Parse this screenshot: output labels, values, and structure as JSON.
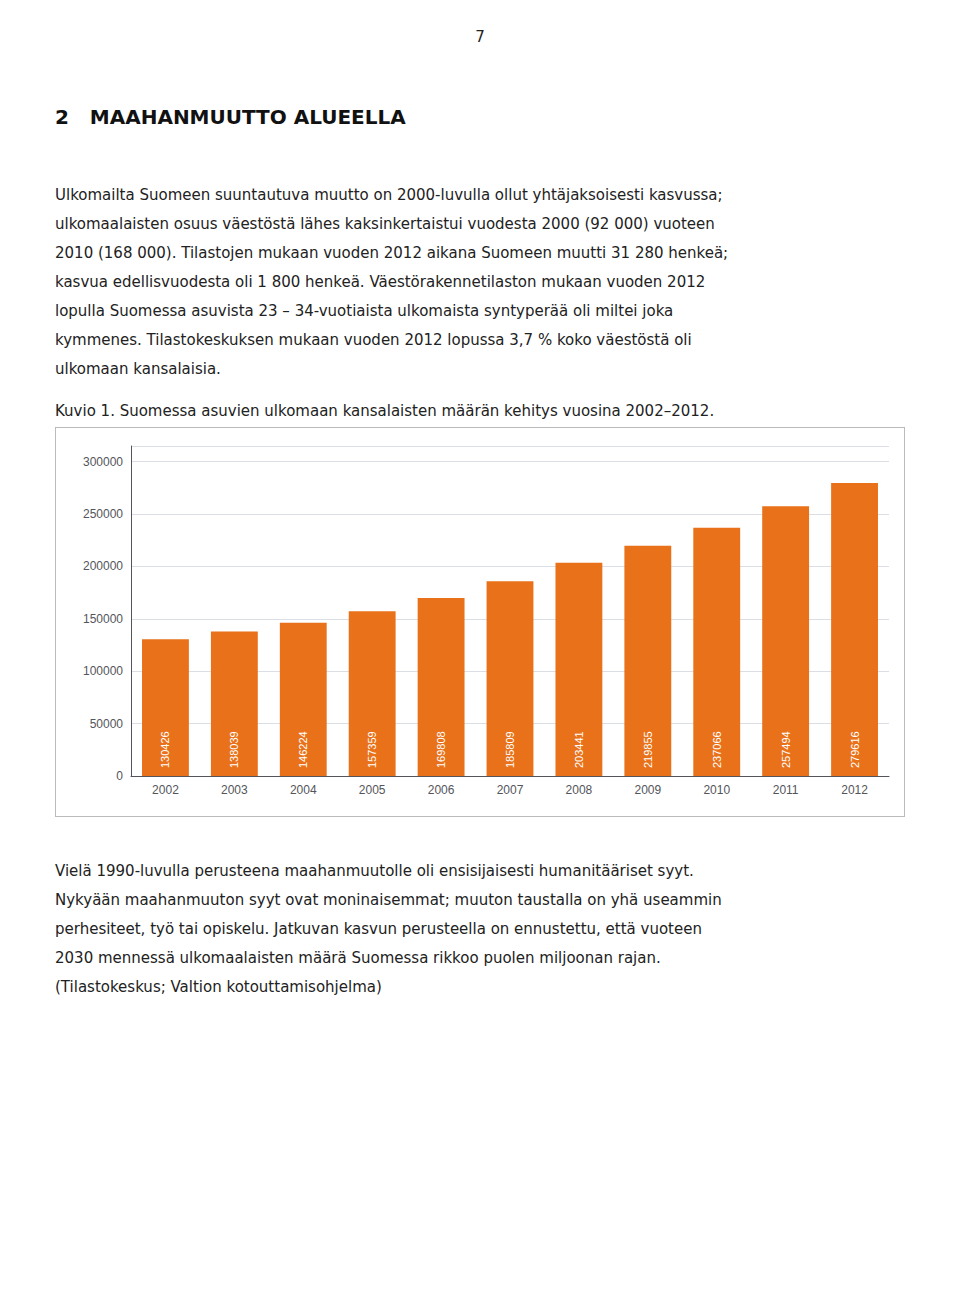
{
  "page_number": "7",
  "heading": "2   MAAHANMUUTTO ALUEELLA",
  "para1_lines": [
    "Ulkomailta Suomeen suuntautuva muutto on 2000-luvulla ollut yhtäjaksoisesti kasvussa;",
    "ulkomaalaisten osuus väestöstä lähes kaksinkertaistui vuodesta 2000 (92 000) vuoteen",
    "2010 (168 000). Tilastojen mukaan vuoden 2012 aikana Suomeen muutti 31 280 henkeä;",
    "kasvua edellisvuodesta oli 1 800 henkeä. Väestörakennetilaston mukaan vuoden 2012",
    "lopulla Suomessa asuvista 23 – 34-vuotiaista ulkomaista syntyperää oli miltei joka",
    "kymmenes. Tilastokeskuksen mukaan vuoden 2012 lopussa 3,7 % koko väestöstä oli",
    "ulkomaan kansalaisia."
  ],
  "para2_lines": [
    "Vielä 1990-luvulla perusteena maahanmuutolle oli ensisijaisesti humanitääriset syyt.",
    "Nykyään maahanmuuton syyt ovat moninaisemmat; muuton taustalla on yhä useammin",
    "perhesiteet, työ tai opiskelu. Jatkuvan kasvun perusteella on ennustettu, että vuoteen",
    "2030 mennessä ulkomaalaisten määrä Suomessa rikkoo puolen miljoonan rajan.",
    "(Tilastokeskus; Valtion kotouttamisohjelma)"
  ],
  "chart_data": {
    "type": "bar",
    "title": "Kuvio 1. Suomessa asuvien ulkomaan kansalaisten määrän kehitys vuosina 2002–2012.",
    "categories": [
      "2002",
      "2003",
      "2004",
      "2005",
      "2006",
      "2007",
      "2008",
      "2009",
      "2010",
      "2011",
      "2012"
    ],
    "values": [
      130426,
      138039,
      146224,
      157359,
      169808,
      185809,
      203441,
      219855,
      237066,
      257494,
      279616
    ],
    "color": "#E8711A",
    "ylim": [
      0,
      315000
    ],
    "yticks": [
      0,
      50000,
      100000,
      150000,
      200000,
      250000,
      300000
    ],
    "grid": true,
    "data_labels": true
  }
}
